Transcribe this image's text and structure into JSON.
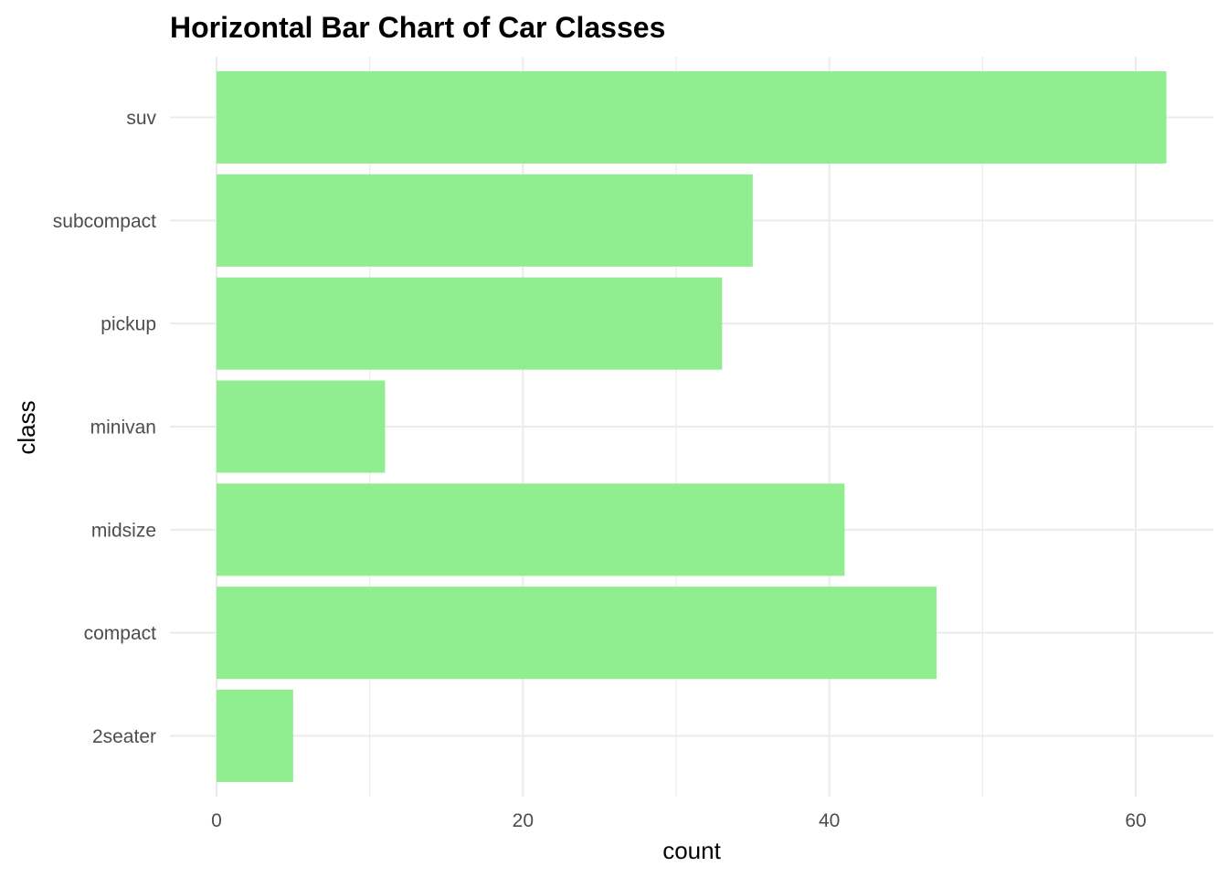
{
  "chart_data": {
    "type": "bar",
    "orientation": "horizontal",
    "title": "Horizontal Bar Chart of Car Classes",
    "xlabel": "count",
    "ylabel": "class",
    "categories": [
      "2seater",
      "compact",
      "midsize",
      "minivan",
      "pickup",
      "subcompact",
      "suv"
    ],
    "values": [
      5,
      47,
      41,
      11,
      33,
      35,
      62
    ],
    "xlim": [
      0,
      65
    ],
    "x_ticks": [
      0,
      20,
      40,
      60
    ],
    "grid": true,
    "legend": "none",
    "bar_color": "#90ee90",
    "grid_color": "#ebebeb"
  }
}
